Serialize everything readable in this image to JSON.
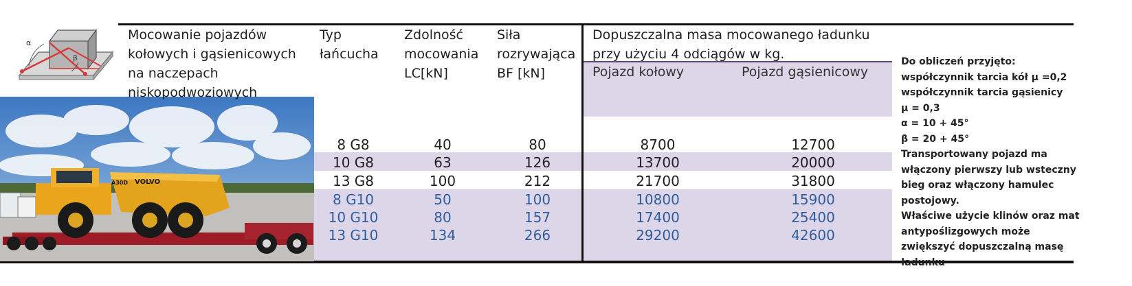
{
  "colors": {
    "band": "#ddd6e8",
    "rule": "#111111",
    "blue_text": "#2f5d9b"
  },
  "diagram": {
    "alpha_label": "α",
    "beta_label": "β"
  },
  "header": {
    "title_lines": [
      "Mocowanie pojazdów",
      "kołowych i gąsienicowych",
      "na naczepach",
      "niskopodwoziowych"
    ],
    "col_type_lines": [
      "Typ",
      "łańcucha"
    ],
    "col_lc_lines": [
      "Zdolność",
      "mocowania",
      "LC[kN]"
    ],
    "col_bf_lines": [
      "Siła",
      "rozrywająca",
      "BF [kN]"
    ],
    "mass_title_lines": [
      "Dopuszczalna masa mocowanego ładunku",
      "przy użyciu 4 odciągów w kg."
    ],
    "wheeled_label": "Pojazd kołowy",
    "tracked_label": "Pojazd gąsienicowy"
  },
  "rows": [
    {
      "type": "8 G8",
      "lc": "40",
      "bf": "80",
      "wheeled": "8700",
      "tracked": "12700"
    },
    {
      "type": "10 G8",
      "lc": "63",
      "bf": "126",
      "wheeled": "13700",
      "tracked": "20000"
    },
    {
      "type": "13 G8",
      "lc": "100",
      "bf": "212",
      "wheeled": "21700",
      "tracked": "31800"
    },
    {
      "type": "8 G10",
      "lc": "50",
      "bf": "100",
      "wheeled": "10800",
      "tracked": "15900"
    },
    {
      "type": "10 G10",
      "lc": "80",
      "bf": "157",
      "wheeled": "17400",
      "tracked": "25400"
    },
    {
      "type": "13 G10",
      "lc": "134",
      "bf": "266",
      "wheeled": "29200",
      "tracked": "42600"
    }
  ],
  "photo": {
    "brand_text": "VOLVO",
    "model_text": "A30D"
  },
  "notes": [
    "Do obliczeń przyjęto:",
    "współczynnik tarcia kół μ =0,2",
    "współczynnik tarcia gąsienicy",
    " μ = 0,3",
    " α = 10 + 45°",
    "β = 20 + 45°",
    "Transportowany pojazd ma",
    "włączony pierwszy lub wsteczny",
    "bieg oraz włączony hamulec",
    "postojowy.",
    "Właściwe użycie klinów oraz mat",
    "antypoślizgowych może",
    "zwiększyć dopuszczalną masę",
    "ładunku"
  ]
}
